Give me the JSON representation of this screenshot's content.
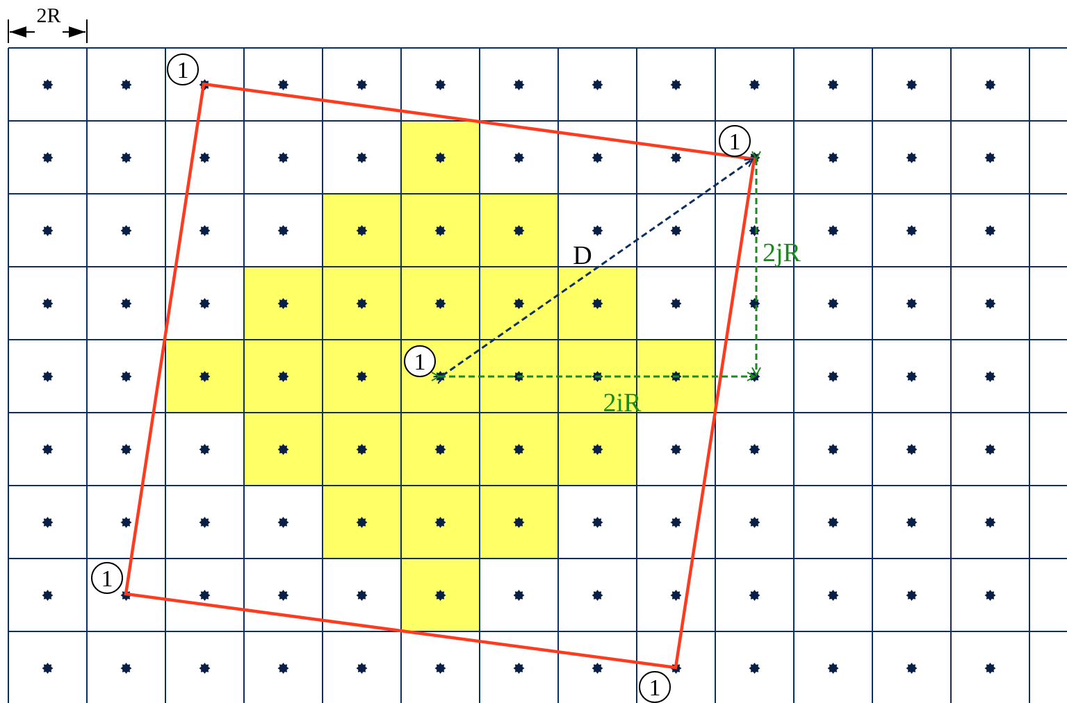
{
  "scale_label": "2R",
  "distance_label": "D",
  "i_label": "2iR",
  "j_label": "2jR",
  "cell_marker_label": "1",
  "colors": {
    "grid": "#0b2f63",
    "dots": "#0a1f45",
    "highlight": "#ffff66",
    "boundary": "#ff3b1f",
    "distance_arrow": "#0b2f63",
    "component_arrows": "#1a8a1a",
    "text": "#000000"
  },
  "grid": {
    "columns": 14,
    "rows": 9,
    "dot_per_cell": true
  },
  "highlighted_cells_count": 25,
  "co_channel_cells": 5
}
